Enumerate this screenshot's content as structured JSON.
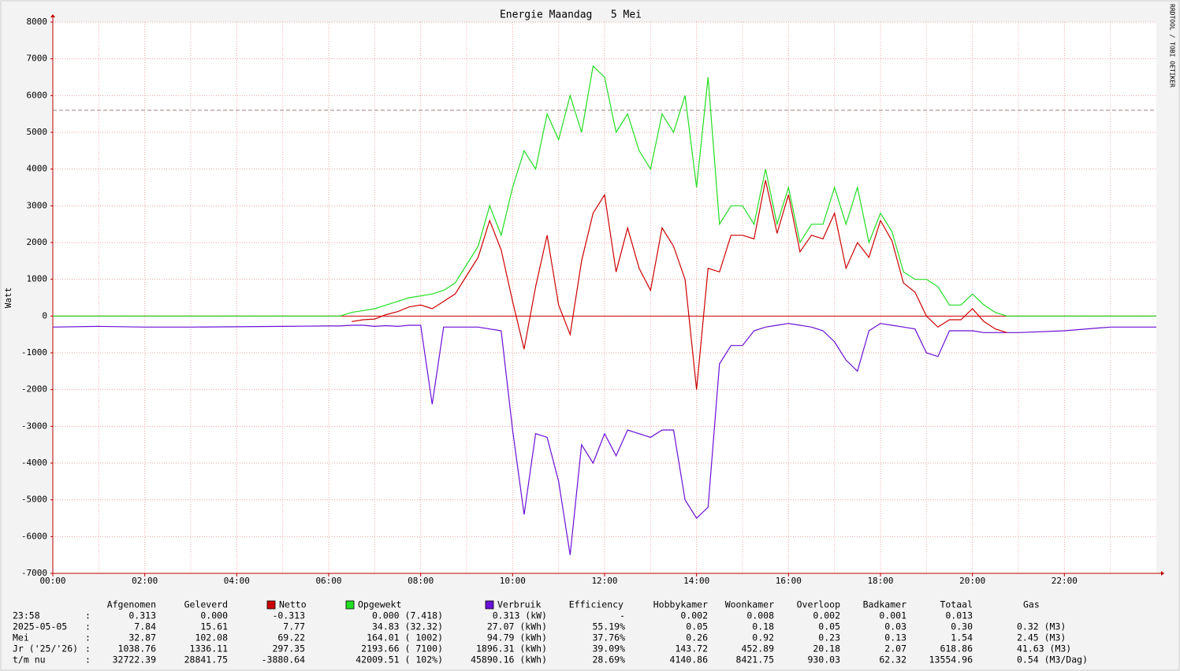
{
  "chart_data": {
    "type": "line",
    "title": "Energie Maandag   5 Mei",
    "y_label": "Watt",
    "watermark": "RRDTOOL / TOBI OETIKER",
    "xlim": [
      0,
      24
    ],
    "xticks": [
      {
        "value": 0,
        "label": "00:00"
      },
      {
        "value": 2,
        "label": "02:00"
      },
      {
        "value": 4,
        "label": "04:00"
      },
      {
        "value": 6,
        "label": "06:00"
      },
      {
        "value": 8,
        "label": "08:00"
      },
      {
        "value": 10,
        "label": "10:00"
      },
      {
        "value": 12,
        "label": "12:00"
      },
      {
        "value": 14,
        "label": "14:00"
      },
      {
        "value": 16,
        "label": "16:00"
      },
      {
        "value": 18,
        "label": "18:00"
      },
      {
        "value": 20,
        "label": "20:00"
      },
      {
        "value": 22,
        "label": "22:00"
      }
    ],
    "xminorticks": [
      1,
      3,
      5,
      7,
      9,
      11,
      13,
      15,
      17,
      19,
      21,
      23
    ],
    "ylim": [
      -7000,
      8000
    ],
    "yticks": [
      -7000,
      -6000,
      -5000,
      -4000,
      -3000,
      -2000,
      -1000,
      0,
      1000,
      2000,
      3000,
      4000,
      5000,
      6000,
      7000,
      8000
    ],
    "grid": true,
    "hline": {
      "value": 5600,
      "color": "#a08080"
    },
    "zero_line_color": "#cc0000",
    "x": [
      0,
      1,
      2,
      3,
      4,
      5,
      6,
      6.25,
      6.5,
      6.75,
      7,
      7.25,
      7.5,
      7.75,
      8,
      8.25,
      8.5,
      8.75,
      9,
      9.25,
      9.5,
      9.75,
      10,
      10.25,
      10.5,
      10.75,
      11,
      11.25,
      11.5,
      11.75,
      12,
      12.25,
      12.5,
      12.75,
      13,
      13.25,
      13.5,
      13.75,
      14,
      14.25,
      14.5,
      14.75,
      15,
      15.25,
      15.5,
      15.75,
      16,
      16.25,
      16.5,
      16.75,
      17,
      17.25,
      17.5,
      17.75,
      18,
      18.25,
      18.5,
      18.75,
      19,
      19.25,
      19.5,
      19.75,
      20,
      20.25,
      20.5,
      20.75,
      21,
      22,
      23,
      24
    ],
    "series": [
      {
        "name": "Netto",
        "color": "#cc0000",
        "values": [
          null,
          null,
          null,
          null,
          null,
          null,
          null,
          null,
          -150,
          -100,
          -80,
          40,
          120,
          250,
          300,
          200,
          400,
          600,
          1100,
          1600,
          2600,
          1800,
          400,
          -900,
          800,
          2200,
          300,
          -500,
          1500,
          2800,
          3300,
          1200,
          2400,
          1300,
          700,
          2400,
          1900,
          1000,
          -2000,
          1300,
          1200,
          2200,
          2200,
          2100,
          3700,
          2250,
          3300,
          1750,
          2200,
          2100,
          2800,
          1300,
          2000,
          1600,
          2600,
          2050,
          900,
          650,
          0,
          -300,
          -100,
          -100,
          200,
          -150,
          -350,
          -450,
          null,
          null,
          null,
          null
        ]
      },
      {
        "name": "Opgewekt",
        "color": "#22dd22",
        "values": [
          0,
          0,
          0,
          0,
          0,
          0,
          0,
          0,
          100,
          150,
          200,
          300,
          400,
          500,
          550,
          600,
          700,
          900,
          1400,
          1900,
          3000,
          2200,
          3500,
          4500,
          4000,
          5500,
          4800,
          6000,
          5000,
          6800,
          6500,
          5000,
          5500,
          4500,
          4000,
          5500,
          5000,
          6000,
          3500,
          6500,
          2500,
          3000,
          3000,
          2500,
          4000,
          2500,
          3500,
          2000,
          2500,
          2500,
          3500,
          2500,
          3500,
          2000,
          2800,
          2300,
          1200,
          1000,
          1000,
          800,
          300,
          300,
          600,
          300,
          100,
          0,
          0,
          0,
          0,
          0
        ]
      },
      {
        "name": "Verbruik",
        "color": "#6a0fd6",
        "values": [
          -300,
          -280,
          -300,
          -300,
          -290,
          -280,
          -270,
          -270,
          -250,
          -250,
          -280,
          -260,
          -280,
          -250,
          -250,
          -2400,
          -300,
          -300,
          -300,
          -300,
          -350,
          -400,
          -3100,
          -5400,
          -3200,
          -3300,
          -4500,
          -6500,
          -3500,
          -4000,
          -3200,
          -3800,
          -3100,
          -3200,
          -3300,
          -3100,
          -3100,
          -5000,
          -5500,
          -5200,
          -1300,
          -800,
          -800,
          -400,
          -300,
          -250,
          -200,
          -250,
          -300,
          -400,
          -700,
          -1200,
          -1500,
          -400,
          -200,
          -250,
          -300,
          -350,
          -1000,
          -1100,
          -400,
          -400,
          -400,
          -450,
          -450,
          -450,
          -450,
          -400,
          -300,
          -300
        ]
      }
    ]
  },
  "table": {
    "columns": [
      "Afgenomen",
      "Geleverd",
      "Efficiency",
      "Hobbykamer",
      "Woonkamer",
      "Overloop",
      "Badkamer",
      "Totaal",
      "Gas"
    ],
    "separator": ":",
    "rows": [
      {
        "label": "23:58",
        "values": [
          "0.313",
          "0.000",
          "-0.313",
          "0.000 (7.418)",
          "0.313 (kW)",
          "-",
          "0.002",
          "0.008",
          "0.002",
          "0.001",
          "0.013",
          null
        ]
      },
      {
        "label": "2025-05-05",
        "values": [
          "7.84",
          "15.61",
          "7.77",
          "34.83 (32.32)",
          "27.07 (kWh)",
          "55.19%",
          "0.05",
          "0.18",
          "0.05",
          "0.03",
          "0.30",
          "0.32 (M3)"
        ]
      },
      {
        "label": "Mei",
        "values": [
          "32.87",
          "102.08",
          "69.22",
          "164.01 ( 1002)",
          "94.79 (kWh)",
          "37.76%",
          "0.26",
          "0.92",
          "0.23",
          "0.13",
          "1.54",
          "2.45 (M3)"
        ]
      },
      {
        "label": "Jr ('25/'26)",
        "values": [
          "1038.76",
          "1336.11",
          "297.35",
          "2193.66 ( 7100)",
          "1896.31 (kWh)",
          "39.09%",
          "143.72",
          "452.89",
          "20.18",
          "2.07",
          "618.86",
          "41.63 (M3)"
        ]
      },
      {
        "label": "t/m nu",
        "values": [
          "32722.39",
          "28841.75",
          "-3880.64",
          "42009.51 ( 102%)",
          "45890.16 (kWh)",
          "28.69%",
          "4140.86",
          "8421.75",
          "930.03",
          "62.32",
          "13554.96",
          "0.54 (M3/Dag)"
        ]
      }
    ]
  }
}
